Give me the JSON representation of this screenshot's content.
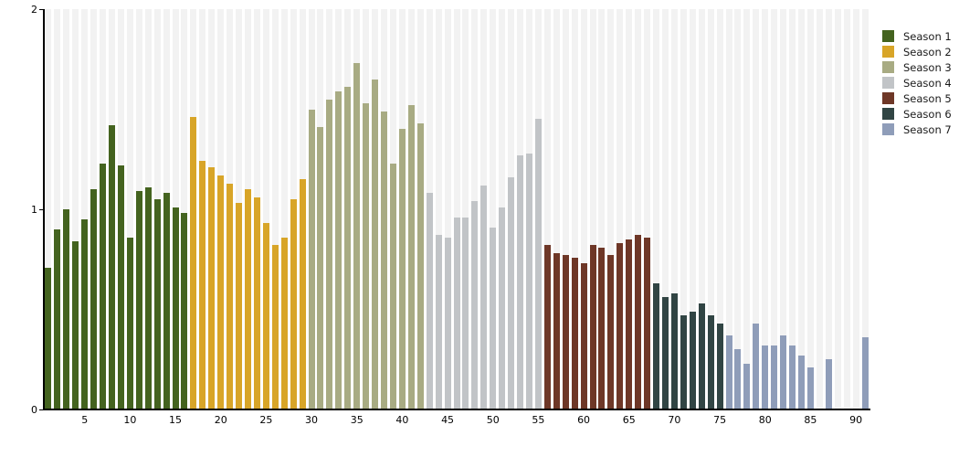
{
  "chart_data": {
    "type": "bar",
    "title": "",
    "xlabel": "",
    "ylabel": "",
    "x_unit": "episode-number",
    "x_range": [
      1,
      91
    ],
    "ylim": [
      0,
      2
    ],
    "x_ticks": [
      5,
      10,
      15,
      20,
      25,
      30,
      35,
      40,
      45,
      50,
      55,
      60,
      65,
      70,
      75,
      80,
      85,
      90
    ],
    "y_ticks": [
      0,
      1,
      2
    ],
    "grid": "per-episode vertical background stripes",
    "stripe_color": "#f2f2f2",
    "axis_color": "#000000",
    "legend_position": "top-right",
    "series": [
      {
        "name": "Season 1",
        "color": "#44631f",
        "start_episode": 1,
        "values": [
          0.71,
          0.9,
          1.0,
          0.84,
          0.95,
          1.1,
          1.23,
          1.42,
          1.22,
          0.86,
          1.09,
          1.11,
          1.05,
          1.08,
          1.01,
          0.98
        ]
      },
      {
        "name": "Season 2",
        "color": "#d8a528",
        "start_episode": 17,
        "values": [
          1.46,
          1.24,
          1.21,
          1.17,
          1.13,
          1.03,
          1.1,
          1.06,
          0.93,
          0.82,
          0.86,
          1.05,
          1.15
        ]
      },
      {
        "name": "Season 3",
        "color": "#a8ab83",
        "start_episode": 30,
        "values": [
          1.5,
          1.41,
          1.55,
          1.59,
          1.61,
          1.73,
          1.53,
          1.65,
          1.49,
          1.23,
          1.4,
          1.52,
          1.43
        ]
      },
      {
        "name": "Season 4",
        "color": "#c1c4c7",
        "start_episode": 43,
        "values": [
          1.08,
          0.87,
          0.86,
          0.96,
          0.96,
          1.04,
          1.12,
          0.91,
          1.01,
          1.16,
          1.27,
          1.28,
          1.45
        ]
      },
      {
        "name": "Season 5",
        "color": "#6e3727",
        "start_episode": 56,
        "values": [
          0.82,
          0.78,
          0.77,
          0.76,
          0.73,
          0.82,
          0.81,
          0.77,
          0.83,
          0.85,
          0.87,
          0.86
        ]
      },
      {
        "name": "Season 6",
        "color": "#314544",
        "start_episode": 68,
        "values": [
          0.63,
          0.56,
          0.58,
          0.47,
          0.49,
          0.53,
          0.47,
          0.43
        ]
      },
      {
        "name": "Season 7",
        "color": "#8f9db9",
        "start_episode": 76,
        "values": [
          0.37,
          0.3,
          0.23,
          0.43,
          0.32,
          0.32,
          0.37,
          0.32,
          0.27,
          0.21,
          null,
          0.25,
          null,
          null,
          null,
          0.36
        ]
      }
    ]
  }
}
